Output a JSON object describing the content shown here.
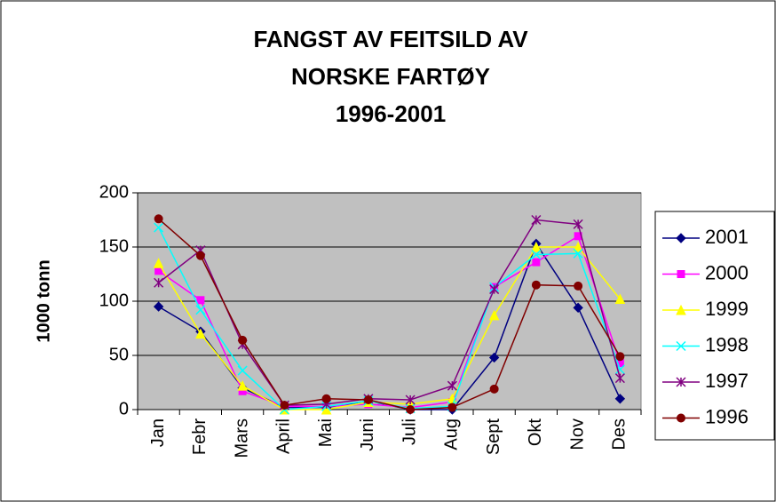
{
  "chart_data": {
    "type": "line",
    "title": [
      "FANGST AV FEITSILD AV",
      "NORSKE FARTØY",
      "1996-2001"
    ],
    "y_label": "1000 tonn",
    "categories": [
      "Jan",
      "Febr",
      "Mars",
      "April",
      "Mai",
      "Juni",
      "Juli",
      "Aug",
      "Sept",
      "Okt",
      "Nov",
      "Des"
    ],
    "ylim": [
      0,
      200
    ],
    "yticks": [
      0,
      50,
      100,
      150,
      200
    ],
    "grid": true,
    "legend": "right",
    "series": [
      {
        "name": "2001",
        "color": "#000080",
        "marker": "diamond",
        "values": [
          95,
          72,
          20,
          2,
          2,
          8,
          0,
          0,
          48,
          153,
          94,
          10
        ]
      },
      {
        "name": "2000",
        "color": "#ff00ff",
        "marker": "square",
        "values": [
          128,
          101,
          17,
          3,
          3,
          5,
          2,
          7,
          113,
          136,
          160,
          43
        ]
      },
      {
        "name": "1999",
        "color": "#ffff00",
        "marker": "triangle",
        "values": [
          135,
          70,
          22,
          0,
          0,
          7,
          5,
          10,
          87,
          150,
          150,
          102
        ]
      },
      {
        "name": "1998",
        "color": "#00ffff",
        "marker": "x",
        "values": [
          168,
          92,
          36,
          0,
          3,
          8,
          1,
          3,
          113,
          143,
          144,
          37
        ]
      },
      {
        "name": "1997",
        "color": "#800080",
        "marker": "star",
        "values": [
          117,
          147,
          60,
          4,
          5,
          10,
          9,
          22,
          111,
          175,
          171,
          29
        ]
      },
      {
        "name": "1996",
        "color": "#800000",
        "marker": "circle",
        "values": [
          176,
          142,
          64,
          4,
          10,
          9,
          0,
          2,
          19,
          115,
          114,
          49
        ]
      }
    ]
  }
}
